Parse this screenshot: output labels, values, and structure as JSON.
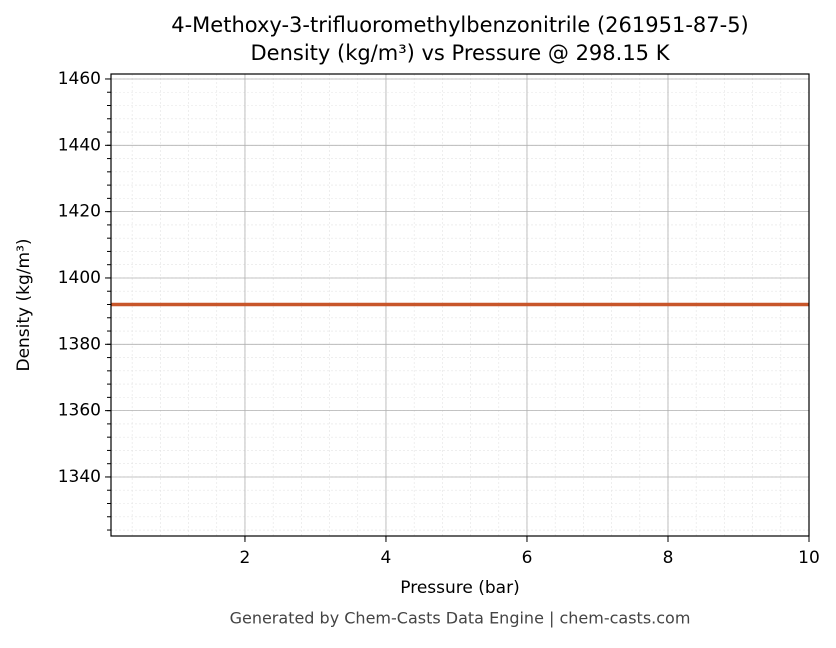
{
  "chart_data": {
    "type": "line",
    "title": "4-Methoxy-3-trifluoromethylbenzonitrile (261951-87-5)",
    "subtitle": "Density (kg/m³) vs Pressure @ 298.15 K",
    "x_label": "Pressure (bar)",
    "y_label": "Density (kg/m³)",
    "footer": "Generated by Chem-Casts Data Engine | chem-casts.com",
    "x": [
      0.1,
      10
    ],
    "series": [
      {
        "name": "Density",
        "color": "#c8562a",
        "values": [
          1392,
          1392
        ]
      }
    ],
    "xlim": [
      0.1,
      10
    ],
    "xticks": [
      2,
      4,
      6,
      8,
      10
    ],
    "ylim": [
      1322.2,
      1461.5
    ],
    "yticks": [
      1340,
      1360,
      1380,
      1400,
      1420,
      1440,
      1460
    ],
    "grid": true
  }
}
